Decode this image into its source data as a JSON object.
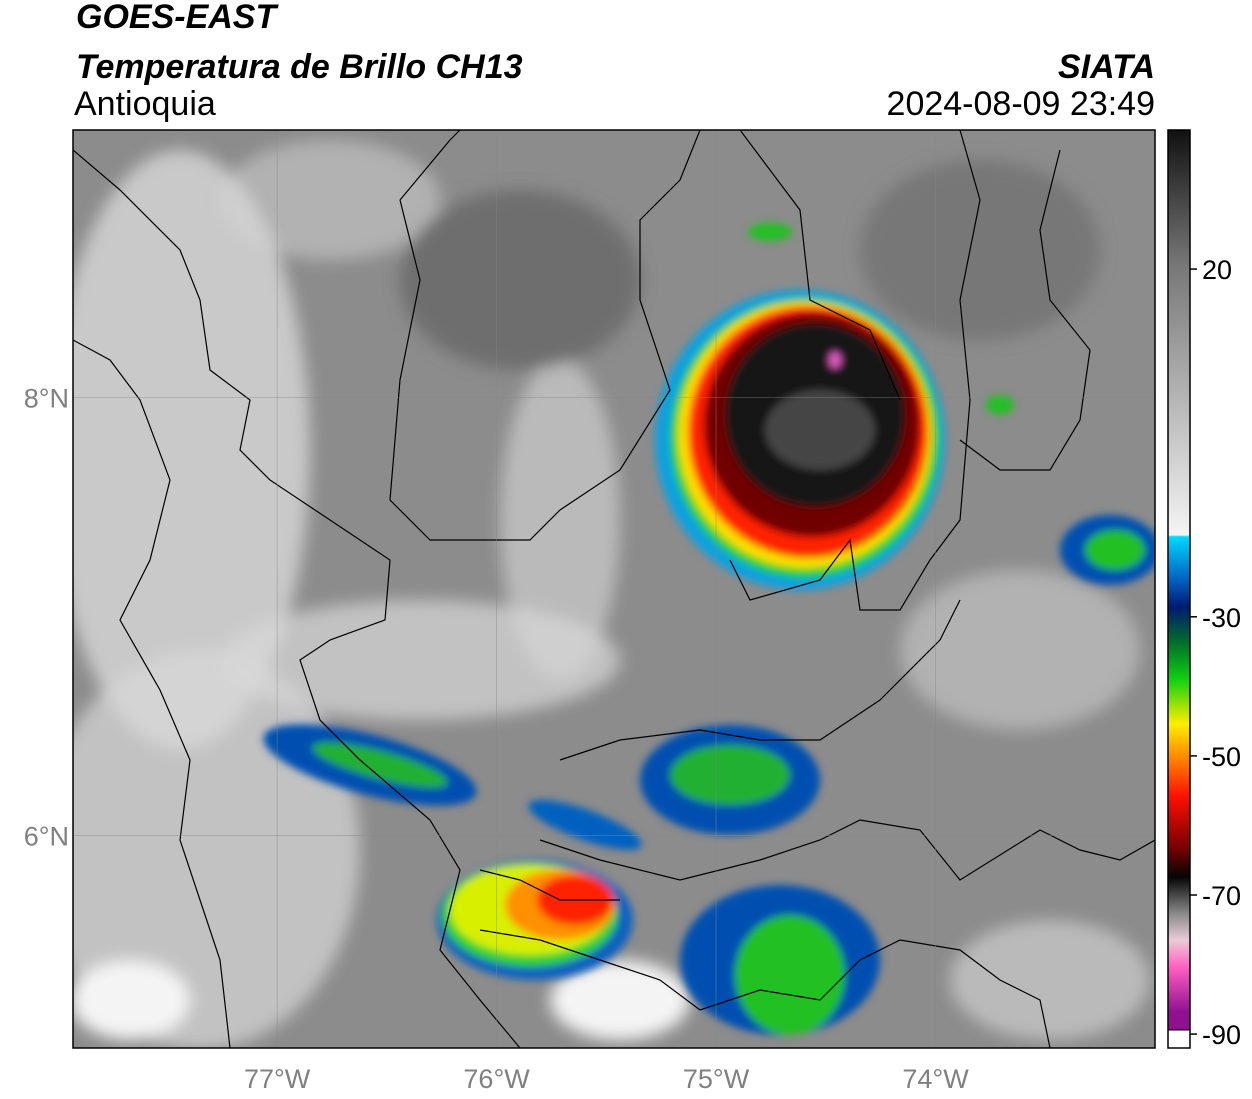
{
  "header": {
    "title": "GOES-EAST",
    "subtitle": "Temperatura de Brillo CH13",
    "region": "Antioquia",
    "source": "SIATA",
    "timestamp": "2024-08-09 23:49"
  },
  "map": {
    "lonlim": [
      -77.93,
      -73.0
    ],
    "latlim": [
      5.03,
      9.22
    ],
    "lonticks": [
      {
        "value": -77,
        "label": "77°W"
      },
      {
        "value": -76,
        "label": "76°W"
      },
      {
        "value": -75,
        "label": "75°W"
      },
      {
        "value": -74,
        "label": "74°W"
      }
    ],
    "latticks": [
      {
        "value": 8,
        "label": "8°N"
      },
      {
        "value": 6,
        "label": "6°N"
      }
    ],
    "grid": true
  },
  "colorbar": {
    "lim": [
      -92,
      40
    ],
    "ticks": [
      20,
      -30,
      -50,
      -70,
      -90
    ]
  }
}
